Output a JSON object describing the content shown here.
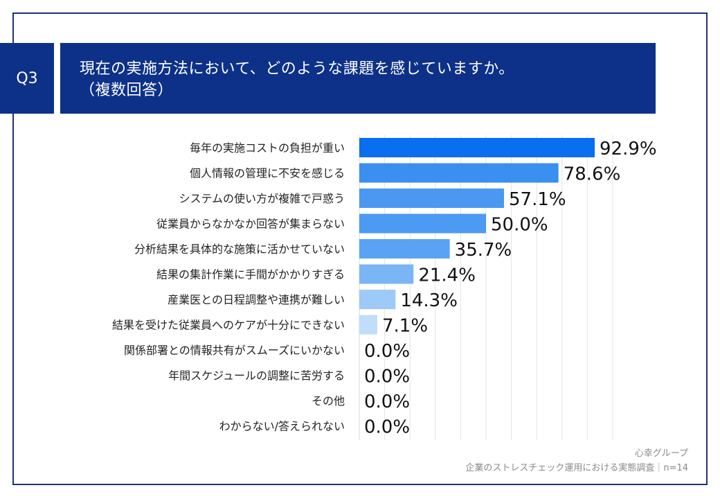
{
  "question": {
    "badge": "Q3",
    "title_line1": "現在の実施方法において、どのような課題を感じていますか。",
    "title_line2": "（複数回答）"
  },
  "footer": {
    "brand": "心幸グループ",
    "source": "企業のストレスチェック運用における実態調査｜n=14"
  },
  "chart_data": {
    "type": "bar",
    "orientation": "horizontal",
    "categories": [
      "毎年の実施コストの負担が重い",
      "個人情報の管理に不安を感じる",
      "システムの使い方が複雑で戸惑う",
      "従業員からなかなか回答が集まらない",
      "分析結果を具体的な施策に活かせていない",
      "結果の集計作業に手間がかかりすぎる",
      "産業医との日程調整や連携が難しい",
      "結果を受けた従業員へのケアが十分にできない",
      "関係部署との情報共有がスムーズにいかない",
      "年間スケジュールの調整に苦労する",
      "その他",
      "わからない/答えられない"
    ],
    "values": [
      92.9,
      78.6,
      57.1,
      50.0,
      35.7,
      21.4,
      14.3,
      7.1,
      0.0,
      0.0,
      0.0,
      0.0
    ],
    "value_labels": [
      "92.9%",
      "78.6%",
      "57.1%",
      "50.0%",
      "35.7%",
      "21.4%",
      "14.3%",
      "7.1%",
      "0.0%",
      "0.0%",
      "0.0%",
      "0.0%"
    ],
    "xlim": [
      0,
      100
    ],
    "grid": true,
    "bar_colors": [
      "#0a6ef0",
      "#3a8ff0",
      "#4a98f2",
      "#4d9af2",
      "#5aa3f4",
      "#7ab6f6",
      "#9dcaf8",
      "#c0ddfa",
      "#c0ddfa",
      "#c0ddfa",
      "#c0ddfa",
      "#c0ddfa"
    ]
  }
}
